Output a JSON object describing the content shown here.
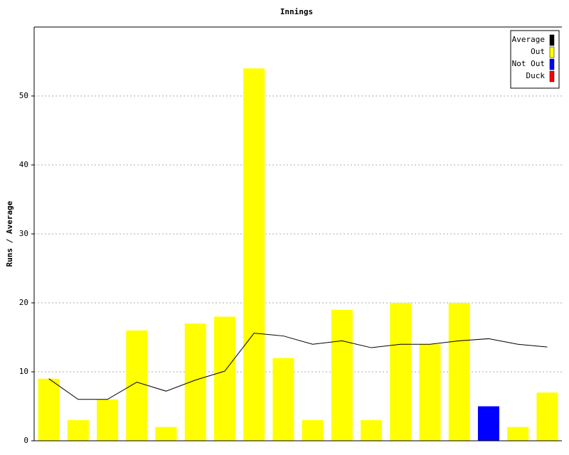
{
  "chart_data": {
    "type": "bar",
    "title": "Innings",
    "y_label": "Runs / Average",
    "categories": [
      null,
      null,
      null,
      null,
      null,
      null,
      null,
      null,
      null,
      null,
      null,
      null,
      null,
      null,
      null,
      null,
      null,
      null
    ],
    "series": [
      {
        "name": "Average",
        "color": "#000000",
        "type": "line",
        "values": [
          9,
          6,
          6,
          8.5,
          7.2,
          8.8,
          10.1,
          15.6,
          15.2,
          14.0,
          14.5,
          13.5,
          14.0,
          14.0,
          14.5,
          14.8,
          14.0,
          13.6
        ]
      },
      {
        "name": "Out",
        "color": "#ffff00",
        "type": "bar",
        "values": [
          9,
          3,
          6,
          16,
          2,
          17,
          18,
          54,
          12,
          3,
          19,
          3,
          20,
          14,
          20,
          null,
          2,
          7
        ]
      },
      {
        "name": "Not Out",
        "color": "#0000ff",
        "type": "bar",
        "values": [
          null,
          null,
          null,
          null,
          null,
          null,
          null,
          null,
          null,
          null,
          null,
          null,
          null,
          null,
          null,
          5,
          null,
          null
        ]
      },
      {
        "name": "Duck",
        "color": "#ff0000",
        "type": "bar",
        "values": [
          null,
          null,
          null,
          null,
          null,
          null,
          null,
          null,
          null,
          null,
          null,
          null,
          null,
          null,
          null,
          null,
          null,
          null
        ]
      }
    ],
    "ylim": [
      0,
      60
    ],
    "yticks": [
      0,
      10,
      20,
      30,
      40,
      50
    ],
    "grid": true,
    "legend": "top-right"
  }
}
